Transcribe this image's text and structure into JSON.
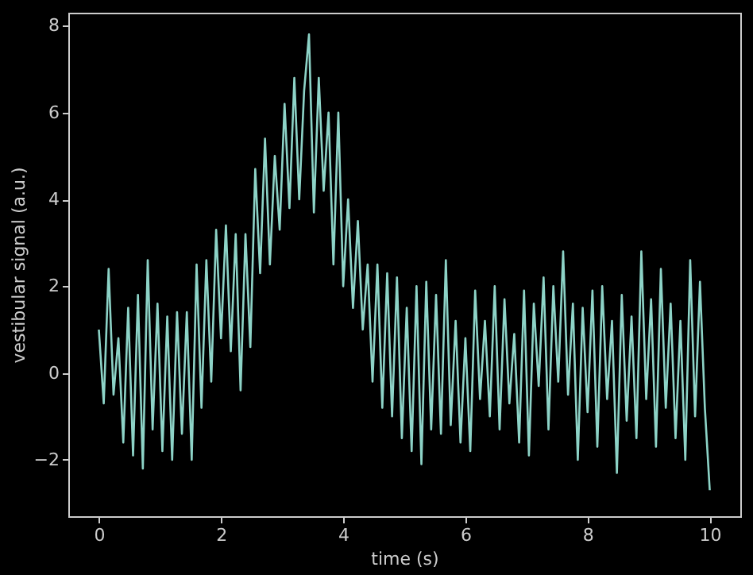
{
  "chart_data": {
    "type": "line",
    "xlabel": "time (s)",
    "ylabel": "vestibular signal (a.u.)",
    "xlim": [
      -0.5,
      10.5
    ],
    "ylim": [
      -3.3,
      8.3
    ],
    "xticks": [
      0,
      2,
      4,
      6,
      8,
      10
    ],
    "yticks": [
      {
        "value": -2,
        "label": "−2"
      },
      0,
      2,
      4,
      6,
      8
    ],
    "grid": false,
    "marker": "none",
    "line_style": "solid",
    "x": [
      0,
      0.08,
      0.16,
      0.24,
      0.32,
      0.4,
      0.48,
      0.56,
      0.64,
      0.72,
      0.8,
      0.88,
      0.96,
      1.04,
      1.12,
      1.2,
      1.28,
      1.36,
      1.44,
      1.52,
      1.6,
      1.68,
      1.76,
      1.84,
      1.92,
      2.0,
      2.08,
      2.16,
      2.24,
      2.32,
      2.4,
      2.48,
      2.56,
      2.64,
      2.72,
      2.8,
      2.88,
      2.96,
      3.04,
      3.12,
      3.2,
      3.28,
      3.36,
      3.44,
      3.52,
      3.6,
      3.68,
      3.76,
      3.84,
      3.92,
      4.0,
      4.08,
      4.16,
      4.24,
      4.32,
      4.4,
      4.48,
      4.56,
      4.64,
      4.72,
      4.8,
      4.88,
      4.96,
      5.04,
      5.12,
      5.2,
      5.28,
      5.36,
      5.44,
      5.52,
      5.6,
      5.68,
      5.76,
      5.84,
      5.92,
      6.0,
      6.08,
      6.16,
      6.24,
      6.32,
      6.4,
      6.48,
      6.56,
      6.64,
      6.72,
      6.8,
      6.88,
      6.96,
      7.04,
      7.12,
      7.2,
      7.28,
      7.36,
      7.44,
      7.52,
      7.6,
      7.68,
      7.76,
      7.84,
      7.92,
      8.0,
      8.08,
      8.16,
      8.24,
      8.32,
      8.4,
      8.48,
      8.56,
      8.64,
      8.72,
      8.8,
      8.88,
      8.96,
      9.04,
      9.12,
      9.2,
      9.28,
      9.36,
      9.44,
      9.52,
      9.6,
      9.68,
      9.76,
      9.84,
      9.92,
      10.0
    ],
    "series": [
      {
        "color": "#8dd3c7",
        "values": [
          1.0,
          -0.7,
          2.4,
          -0.5,
          0.8,
          -1.6,
          1.5,
          -1.9,
          1.8,
          -2.2,
          2.6,
          -1.3,
          1.6,
          -1.8,
          1.3,
          -2.0,
          1.4,
          -1.4,
          1.4,
          -2.0,
          2.5,
          -0.8,
          2.6,
          -0.2,
          3.3,
          0.8,
          3.4,
          0.5,
          3.2,
          -0.4,
          3.2,
          0.6,
          4.7,
          2.3,
          5.4,
          2.5,
          5.0,
          3.3,
          6.2,
          3.8,
          6.8,
          4.0,
          6.5,
          7.8,
          3.7,
          6.8,
          4.2,
          6.0,
          2.5,
          6.0,
          2.0,
          4.0,
          1.5,
          3.5,
          1.0,
          2.5,
          -0.2,
          2.5,
          -0.8,
          2.3,
          -1.0,
          2.2,
          -1.5,
          1.5,
          -1.8,
          2.0,
          -2.1,
          2.1,
          -1.3,
          1.8,
          -1.4,
          2.6,
          -1.2,
          1.2,
          -1.6,
          0.8,
          -1.8,
          1.9,
          -0.6,
          1.2,
          -1.0,
          2.0,
          -1.3,
          1.7,
          -0.7,
          0.9,
          -1.6,
          1.9,
          -1.9,
          1.6,
          -0.3,
          2.2,
          -1.3,
          2.0,
          -0.2,
          2.8,
          -0.5,
          1.6,
          -2.0,
          1.5,
          -0.9,
          1.9,
          -1.7,
          2.0,
          -0.6,
          1.2,
          -2.3,
          1.8,
          -1.1,
          1.3,
          -1.5,
          2.8,
          -0.6,
          1.7,
          -1.7,
          2.4,
          -0.8,
          1.6,
          -1.5,
          1.2,
          -2.0,
          2.6,
          -1.0,
          2.1,
          -0.8,
          -2.7
        ]
      }
    ]
  }
}
